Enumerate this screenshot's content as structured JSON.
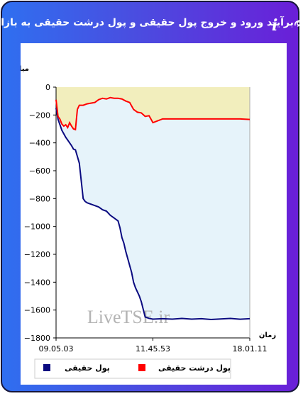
{
  "title": "برآیند ورود و خروج پول حقیقی و پول درشت حقیقی به بازار",
  "chart_data": {
    "type": "line",
    "ylabel": "میلیارد تومان",
    "xlabel": "زمان",
    "ylim": [
      -1800,
      0
    ],
    "yticks": [
      "0",
      "-200",
      "-400",
      "-600",
      "-800",
      "-1000",
      "-1200",
      "-1400",
      "-1600",
      "-1800"
    ],
    "xticks": [
      "09.05.03",
      "11.45.53",
      "18.01.11"
    ],
    "watermark": "LiveTSE.ir",
    "grid": false,
    "legend_position": "bottom",
    "series": [
      {
        "name": "پول درشت حقیقی",
        "color": "#ff0000",
        "fill": "#f2eebd",
        "x": [
          0,
          1,
          2,
          3,
          4,
          5,
          6,
          7,
          8,
          9,
          10,
          11,
          12,
          14,
          16,
          18,
          20,
          22,
          24,
          26,
          28,
          30,
          32,
          34,
          36,
          38,
          40,
          42,
          44,
          46,
          48,
          50,
          55,
          60,
          65,
          70,
          75,
          80,
          85,
          90,
          95,
          100
        ],
        "values": [
          -90,
          -210,
          -230,
          -265,
          -280,
          -270,
          -290,
          -255,
          -280,
          -300,
          -305,
          -160,
          -130,
          -130,
          -120,
          -115,
          -110,
          -90,
          -80,
          -85,
          -75,
          -80,
          -80,
          -85,
          -100,
          -110,
          -160,
          -180,
          -185,
          -210,
          -205,
          -255,
          -228,
          -228,
          -228,
          -228,
          -228,
          -228,
          -228,
          -228,
          -228,
          -232
        ]
      },
      {
        "name": "پول حقیقی",
        "color": "#0a0a80",
        "fill": "#e6f3fa",
        "x": [
          0,
          1,
          2,
          3,
          4,
          5,
          6,
          7,
          8,
          9,
          10,
          12,
          14,
          15,
          16,
          18,
          20,
          22,
          24,
          26,
          28,
          30,
          32,
          33,
          34,
          35,
          36,
          37,
          38,
          39,
          40,
          41,
          42,
          43,
          44,
          46,
          48,
          50,
          55,
          60,
          65,
          70,
          75,
          80,
          85,
          90,
          95,
          100
        ],
        "values": [
          -150,
          -230,
          -270,
          -310,
          -335,
          -360,
          -380,
          -400,
          -420,
          -445,
          -450,
          -545,
          -800,
          -820,
          -830,
          -840,
          -850,
          -860,
          -880,
          -890,
          -920,
          -940,
          -960,
          -1010,
          -1080,
          -1120,
          -1180,
          -1230,
          -1280,
          -1330,
          -1400,
          -1440,
          -1470,
          -1500,
          -1540,
          -1650,
          -1660,
          -1665,
          -1662,
          -1665,
          -1660,
          -1665,
          -1662,
          -1668,
          -1664,
          -1660,
          -1666,
          -1662
        ]
      }
    ]
  }
}
